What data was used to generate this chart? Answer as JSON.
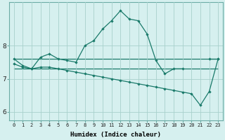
{
  "xlabel": "Humidex (Indice chaleur)",
  "background_color": "#d6f0ef",
  "grid_color": "#a8d0cc",
  "line_color": "#1a7a6a",
  "x_values": [
    0,
    1,
    2,
    3,
    4,
    5,
    6,
    7,
    8,
    9,
    10,
    11,
    12,
    13,
    14,
    15,
    16,
    17,
    18,
    19,
    20,
    21,
    22,
    23
  ],
  "series1": [
    7.6,
    7.4,
    7.3,
    7.65,
    7.75,
    7.6,
    7.55,
    7.5,
    8.0,
    8.15,
    8.5,
    8.75,
    9.05,
    8.8,
    8.75,
    8.35,
    7.55,
    7.15,
    7.3,
    7.3,
    null,
    null,
    7.6,
    7.6
  ],
  "series2": [
    7.6,
    null,
    null,
    null,
    null,
    null,
    null,
    null,
    null,
    null,
    7.6,
    null,
    null,
    null,
    null,
    null,
    7.6,
    null,
    null,
    null,
    7.6,
    null,
    null,
    7.6
  ],
  "series2_flat": [
    7.6,
    7.6,
    7.6,
    7.6,
    7.6,
    7.6,
    7.6,
    7.6,
    7.6,
    7.6,
    7.6,
    7.6,
    7.6,
    7.6,
    7.6,
    7.6,
    7.6,
    7.6,
    7.6,
    7.6,
    7.6,
    7.6,
    7.6,
    7.6
  ],
  "series3": [
    7.45,
    7.35,
    7.3,
    7.35,
    7.35,
    7.3,
    7.25,
    7.2,
    7.15,
    7.1,
    7.05,
    7.0,
    6.95,
    6.9,
    6.85,
    6.8,
    6.75,
    6.7,
    6.65,
    6.6,
    6.55,
    6.2,
    6.62,
    7.6
  ],
  "series3_flat": [
    7.3,
    7.3,
    7.3,
    7.3,
    7.3,
    7.3,
    7.3,
    7.3,
    7.3,
    7.3,
    7.3,
    7.3,
    7.3,
    7.3,
    7.3,
    7.3,
    7.3,
    7.3,
    7.3,
    7.3,
    7.3,
    7.3,
    7.3,
    7.3
  ],
  "ylim": [
    5.75,
    9.3
  ],
  "yticks": [
    6,
    7,
    8
  ],
  "xticks": [
    0,
    1,
    2,
    3,
    4,
    5,
    6,
    7,
    8,
    9,
    10,
    11,
    12,
    13,
    14,
    15,
    16,
    17,
    18,
    19,
    20,
    21,
    22,
    23
  ]
}
